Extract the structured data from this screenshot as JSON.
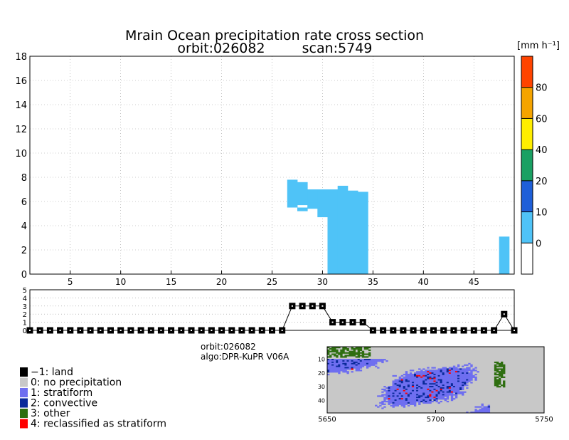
{
  "title_line1": "Mrain Ocean precipitation rate cross section",
  "title_line2_orbit": "orbit:026082",
  "title_line2_scan": "scan:5749",
  "colorbar": {
    "unit": "[mm h⁻¹]",
    "ticks": [
      "0",
      "10",
      "20",
      "40",
      "60",
      "80"
    ],
    "colors": [
      "#ffffff",
      "#4fc3f7",
      "#1e5fd8",
      "#1aa063",
      "#ffee00",
      "#f5a400",
      "#ff4400"
    ]
  },
  "info": {
    "orbit": "orbit:026082",
    "algo": "algo:DPR-KuPR V06A"
  },
  "legend": [
    {
      "label": "−1: land",
      "color": "#000000"
    },
    {
      "label": "0: no precipitation",
      "color": "#c8c8c8"
    },
    {
      "label": "1: stratiform",
      "color": "#6e6ef0"
    },
    {
      "label": "2: convective",
      "color": "#0a2a9a"
    },
    {
      "label": "3: other",
      "color": "#2e6e10"
    },
    {
      "label": "4: reclassified as stratiform",
      "color": "#ff0000"
    }
  ],
  "chart_data": [
    {
      "type": "heatmap",
      "xlim": [
        1,
        49
      ],
      "ylim": [
        0,
        18
      ],
      "x_ticks": [
        5,
        10,
        15,
        20,
        25,
        30,
        35,
        40,
        45
      ],
      "y_ticks": [
        0,
        2,
        4,
        6,
        8,
        10,
        12,
        14,
        16,
        18
      ],
      "grid": true,
      "cells": [
        {
          "x": 27,
          "y0": 5.5,
          "y1": 7.8,
          "bin": "0-10"
        },
        {
          "x": 28,
          "y0": 5.7,
          "y1": 7.6,
          "bin": "0-10"
        },
        {
          "x": 28,
          "y0": 5.2,
          "y1": 5.5,
          "bin": "0-10"
        },
        {
          "x": 29,
          "y0": 5.4,
          "y1": 7.0,
          "bin": "0-10"
        },
        {
          "x": 29,
          "y0": 5.9,
          "y1": 7.0,
          "bin": "0-10"
        },
        {
          "x": 30,
          "y0": 4.7,
          "y1": 7.0,
          "bin": "0-10"
        },
        {
          "x": 31,
          "y0": 0,
          "y1": 7.0,
          "bin": "0-10"
        },
        {
          "x": 32,
          "y0": 0,
          "y1": 7.3,
          "bin": "0-10"
        },
        {
          "x": 33,
          "y0": 0,
          "y1": 6.9,
          "bin": "0-10"
        },
        {
          "x": 34,
          "y0": 0,
          "y1": 6.8,
          "bin": "0-10"
        },
        {
          "x": 48,
          "y0": 0,
          "y1": 3.1,
          "bin": "0-10"
        }
      ]
    },
    {
      "type": "line",
      "xlim": [
        1,
        49
      ],
      "ylim": [
        0,
        5
      ],
      "y_ticks": [
        0,
        1,
        2,
        3,
        4,
        5
      ],
      "x": [
        1,
        2,
        3,
        4,
        5,
        6,
        7,
        8,
        9,
        10,
        11,
        12,
        13,
        14,
        15,
        16,
        17,
        18,
        19,
        20,
        21,
        22,
        23,
        24,
        25,
        26,
        27,
        28,
        29,
        30,
        31,
        32,
        33,
        34,
        35,
        36,
        37,
        38,
        39,
        40,
        41,
        42,
        43,
        44,
        45,
        46,
        47,
        48,
        49
      ],
      "values": [
        0,
        0,
        0,
        0,
        0,
        0,
        0,
        0,
        0,
        0,
        0,
        0,
        0,
        0,
        0,
        0,
        0,
        0,
        0,
        0,
        0,
        0,
        0,
        0,
        0,
        0,
        3,
        3,
        3,
        3,
        1,
        1,
        1,
        1,
        0,
        0,
        0,
        0,
        0,
        0,
        0,
        0,
        0,
        0,
        0,
        0,
        0,
        2,
        0
      ]
    },
    {
      "type": "heatmap",
      "x_ticks": [
        5650,
        5700,
        5750
      ],
      "y_ticks": [
        10,
        20,
        30,
        40
      ],
      "xlim": [
        5650,
        5750
      ],
      "ylim": [
        1,
        49
      ]
    }
  ]
}
